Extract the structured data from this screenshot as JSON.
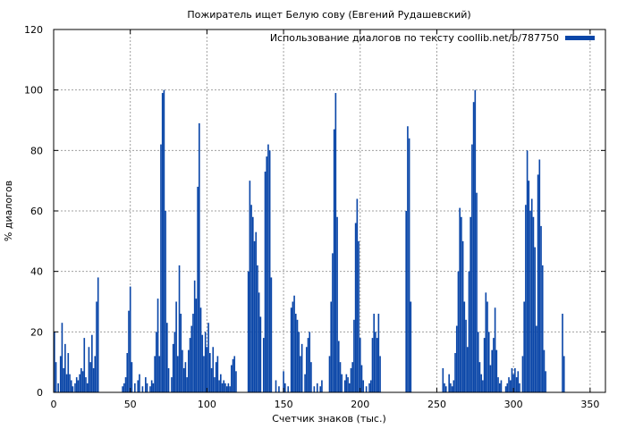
{
  "chart_data": {
    "type": "bar",
    "title": "Пожиратель ищет Белую сову (Евгений Рудашевский)",
    "xlabel": "Счетчик знаков (тыс.)",
    "ylabel": "% диалогов",
    "xlim": [
      0,
      360
    ],
    "ylim": [
      0,
      120
    ],
    "x_ticks": [
      0,
      50,
      100,
      150,
      200,
      250,
      300,
      350
    ],
    "y_ticks": [
      0,
      20,
      40,
      60,
      80,
      100,
      120
    ],
    "grid": true,
    "legend_position": "top-right",
    "series": [
      {
        "name": "Использование диалогов по тексту coollib.net/b/787750",
        "color": "#0a46a8",
        "points": [
          [
            0.5,
            20
          ],
          [
            1.5,
            10
          ],
          [
            3,
            3
          ],
          [
            4.5,
            12
          ],
          [
            5.5,
            23
          ],
          [
            6.5,
            8
          ],
          [
            7.5,
            16
          ],
          [
            8.5,
            6
          ],
          [
            9.5,
            13
          ],
          [
            10.5,
            6
          ],
          [
            11.5,
            4
          ],
          [
            12.5,
            2
          ],
          [
            14,
            3
          ],
          [
            15,
            5
          ],
          [
            16,
            4
          ],
          [
            17,
            6
          ],
          [
            18,
            8
          ],
          [
            19,
            7
          ],
          [
            20,
            18
          ],
          [
            21,
            5
          ],
          [
            22,
            3
          ],
          [
            23,
            15
          ],
          [
            24,
            10
          ],
          [
            25,
            19
          ],
          [
            26,
            8
          ],
          [
            27,
            12
          ],
          [
            28,
            30
          ],
          [
            29,
            38
          ],
          [
            45,
            2
          ],
          [
            46,
            3
          ],
          [
            47,
            5
          ],
          [
            48,
            13
          ],
          [
            49,
            27
          ],
          [
            50,
            35
          ],
          [
            51,
            10
          ],
          [
            53,
            3
          ],
          [
            55,
            4
          ],
          [
            56,
            6
          ],
          [
            58,
            2
          ],
          [
            60,
            5
          ],
          [
            61,
            3
          ],
          [
            63,
            2
          ],
          [
            64,
            4
          ],
          [
            65,
            3
          ],
          [
            66,
            12
          ],
          [
            67,
            20
          ],
          [
            68,
            31
          ],
          [
            69,
            12
          ],
          [
            70,
            82
          ],
          [
            71,
            99
          ],
          [
            72,
            100
          ],
          [
            73,
            60
          ],
          [
            74,
            23
          ],
          [
            75,
            8
          ],
          [
            77,
            5
          ],
          [
            78,
            16
          ],
          [
            79,
            20
          ],
          [
            80,
            30
          ],
          [
            81,
            12
          ],
          [
            82,
            42
          ],
          [
            83,
            26
          ],
          [
            84,
            14
          ],
          [
            85,
            8
          ],
          [
            86,
            10
          ],
          [
            87,
            5
          ],
          [
            88,
            14
          ],
          [
            89,
            18
          ],
          [
            90,
            22
          ],
          [
            91,
            26
          ],
          [
            92,
            37
          ],
          [
            93,
            31
          ],
          [
            94,
            68
          ],
          [
            95,
            89
          ],
          [
            96,
            28
          ],
          [
            97,
            19
          ],
          [
            98,
            12
          ],
          [
            99,
            20
          ],
          [
            100,
            15
          ],
          [
            101,
            23
          ],
          [
            102,
            13
          ],
          [
            103,
            8
          ],
          [
            104,
            15
          ],
          [
            105,
            5
          ],
          [
            106,
            10
          ],
          [
            107,
            12
          ],
          [
            108,
            4
          ],
          [
            109,
            6
          ],
          [
            110,
            3
          ],
          [
            111,
            4
          ],
          [
            112,
            3
          ],
          [
            113,
            2
          ],
          [
            114,
            3
          ],
          [
            115,
            2
          ],
          [
            116,
            9
          ],
          [
            117,
            11
          ],
          [
            118,
            12
          ],
          [
            119,
            7
          ],
          [
            127,
            40
          ],
          [
            128,
            70
          ],
          [
            129,
            62
          ],
          [
            130,
            58
          ],
          [
            131,
            50
          ],
          [
            132,
            53
          ],
          [
            133,
            42
          ],
          [
            134,
            33
          ],
          [
            135,
            25
          ],
          [
            137,
            18
          ],
          [
            138,
            73
          ],
          [
            139,
            78
          ],
          [
            140,
            82
          ],
          [
            141,
            80
          ],
          [
            142,
            38
          ],
          [
            145,
            4
          ],
          [
            147,
            2
          ],
          [
            150,
            7
          ],
          [
            151,
            3
          ],
          [
            153,
            2
          ],
          [
            155,
            28
          ],
          [
            156,
            30
          ],
          [
            157,
            32
          ],
          [
            158,
            26
          ],
          [
            159,
            24
          ],
          [
            160,
            20
          ],
          [
            161,
            12
          ],
          [
            162,
            16
          ],
          [
            164,
            6
          ],
          [
            165,
            15
          ],
          [
            166,
            18
          ],
          [
            167,
            20
          ],
          [
            168,
            10
          ],
          [
            170,
            2
          ],
          [
            172,
            3
          ],
          [
            174,
            2
          ],
          [
            175,
            4
          ],
          [
            180,
            12
          ],
          [
            181,
            30
          ],
          [
            182,
            46
          ],
          [
            183,
            87
          ],
          [
            184,
            99
          ],
          [
            185,
            58
          ],
          [
            186,
            17
          ],
          [
            187,
            10
          ],
          [
            188,
            6
          ],
          [
            190,
            4
          ],
          [
            191,
            6
          ],
          [
            192,
            5
          ],
          [
            193,
            3
          ],
          [
            194,
            8
          ],
          [
            195,
            10
          ],
          [
            196,
            24
          ],
          [
            197,
            56
          ],
          [
            198,
            64
          ],
          [
            199,
            50
          ],
          [
            200,
            18
          ],
          [
            201,
            9
          ],
          [
            202,
            4
          ],
          [
            204,
            2
          ],
          [
            206,
            3
          ],
          [
            207,
            4
          ],
          [
            208,
            18
          ],
          [
            209,
            26
          ],
          [
            210,
            20
          ],
          [
            211,
            18
          ],
          [
            212,
            26
          ],
          [
            213,
            12
          ],
          [
            230,
            60
          ],
          [
            231,
            88
          ],
          [
            232,
            84
          ],
          [
            233,
            30
          ],
          [
            254,
            8
          ],
          [
            255,
            3
          ],
          [
            256,
            2
          ],
          [
            258,
            6
          ],
          [
            259,
            3
          ],
          [
            260,
            2
          ],
          [
            261,
            4
          ],
          [
            262,
            13
          ],
          [
            263,
            22
          ],
          [
            264,
            40
          ],
          [
            265,
            61
          ],
          [
            266,
            58
          ],
          [
            267,
            50
          ],
          [
            268,
            30
          ],
          [
            269,
            24
          ],
          [
            270,
            15
          ],
          [
            271,
            40
          ],
          [
            272,
            58
          ],
          [
            273,
            82
          ],
          [
            274,
            96
          ],
          [
            275,
            100
          ],
          [
            276,
            66
          ],
          [
            277,
            20
          ],
          [
            278,
            10
          ],
          [
            279,
            6
          ],
          [
            280,
            4
          ],
          [
            281,
            18
          ],
          [
            282,
            33
          ],
          [
            283,
            30
          ],
          [
            284,
            20
          ],
          [
            285,
            9
          ],
          [
            286,
            14
          ],
          [
            287,
            18
          ],
          [
            288,
            28
          ],
          [
            289,
            14
          ],
          [
            290,
            5
          ],
          [
            291,
            3
          ],
          [
            292,
            4
          ],
          [
            295,
            2
          ],
          [
            296,
            3
          ],
          [
            297,
            5
          ],
          [
            298,
            4
          ],
          [
            299,
            8
          ],
          [
            300,
            6
          ],
          [
            301,
            8
          ],
          [
            302,
            5
          ],
          [
            303,
            7
          ],
          [
            304,
            3
          ],
          [
            306,
            12
          ],
          [
            307,
            30
          ],
          [
            308,
            62
          ],
          [
            309,
            80
          ],
          [
            310,
            70
          ],
          [
            311,
            60
          ],
          [
            312,
            64
          ],
          [
            313,
            58
          ],
          [
            314,
            48
          ],
          [
            315,
            22
          ],
          [
            316,
            72
          ],
          [
            317,
            77
          ],
          [
            318,
            55
          ],
          [
            319,
            42
          ],
          [
            320,
            14
          ],
          [
            321,
            7
          ],
          [
            332,
            26
          ],
          [
            333,
            12
          ]
        ]
      }
    ]
  }
}
